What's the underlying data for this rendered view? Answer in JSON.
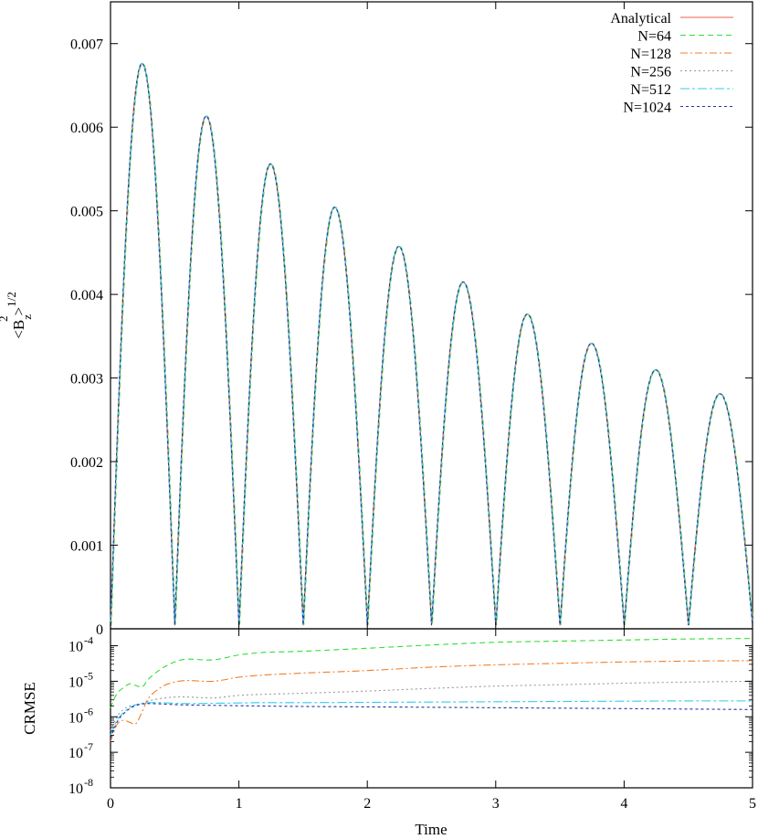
{
  "chart_data": [
    {
      "type": "line",
      "title": "",
      "ylabel_base": "<B",
      "ylabel_sub": "z",
      "ylabel_sup": "2",
      "ylabel_close": ">",
      "ylabel_power": "1/2",
      "xlim": [
        0,
        5
      ],
      "ylim": [
        0,
        0.0075
      ],
      "yticks": [
        {
          "value": 0,
          "label": "0"
        },
        {
          "value": 0.001,
          "label": "0.001"
        },
        {
          "value": 0.002,
          "label": "0.002"
        },
        {
          "value": 0.003,
          "label": "0.003"
        },
        {
          "value": 0.004,
          "label": "0.004"
        },
        {
          "value": 0.005,
          "label": "0.005"
        },
        {
          "value": 0.006,
          "label": "0.006"
        },
        {
          "value": 0.007,
          "label": "0.007"
        }
      ],
      "grid": false,
      "legend_position": "top-right",
      "oscillation": {
        "period": 1.0,
        "peaks": [
          {
            "x": 0.25,
            "y": 0.00672
          },
          {
            "x": 0.75,
            "y": 0.00609
          },
          {
            "x": 1.25,
            "y": 0.00552
          },
          {
            "x": 1.75,
            "y": 0.005
          },
          {
            "x": 2.25,
            "y": 0.00453
          },
          {
            "x": 2.75,
            "y": 0.0041
          },
          {
            "x": 3.25,
            "y": 0.00372
          },
          {
            "x": 3.75,
            "y": 0.00337
          },
          {
            "x": 4.25,
            "y": 0.00306
          },
          {
            "x": 4.75,
            "y": 0.00277
          }
        ],
        "zeros": [
          0.5,
          1.0,
          1.5,
          2.0,
          2.5,
          3.0,
          3.5,
          4.0,
          4.5,
          5.0
        ]
      },
      "series": [
        {
          "name": "Analytical",
          "color": "#e8634a",
          "dash": "none"
        },
        {
          "name": "N=64",
          "color": "#33dd33",
          "dash": "6,4"
        },
        {
          "name": "N=128",
          "color": "#ee8030",
          "dash": "8,3,2,3"
        },
        {
          "name": "N=256",
          "color": "#999999",
          "dash": "2,3"
        },
        {
          "name": "N=512",
          "color": "#33ccee",
          "dash": "10,3,3,3"
        },
        {
          "name": "N=1024",
          "color": "#2233aa",
          "dash": "3,3"
        }
      ]
    },
    {
      "type": "line",
      "title": "",
      "xlabel": "Time",
      "ylabel": "CRMSE",
      "yscale": "log",
      "xlim": [
        0,
        5
      ],
      "ylim": [
        1e-08,
        0.0003
      ],
      "xticks": [
        {
          "value": 0,
          "label": "0"
        },
        {
          "value": 1,
          "label": "1"
        },
        {
          "value": 2,
          "label": "2"
        },
        {
          "value": 3,
          "label": "3"
        },
        {
          "value": 4,
          "label": "4"
        },
        {
          "value": 5,
          "label": "5"
        }
      ],
      "yticks": [
        {
          "value": 1e-08,
          "base": "10",
          "exp": "-8"
        },
        {
          "value": 1e-07,
          "base": "10",
          "exp": "-7"
        },
        {
          "value": 1e-06,
          "base": "10",
          "exp": "-6"
        },
        {
          "value": 1e-05,
          "base": "10",
          "exp": "-5"
        },
        {
          "value": 0.0001,
          "base": "10",
          "exp": "-4"
        }
      ],
      "grid": false,
      "series": [
        {
          "name": "N=64",
          "color": "#33dd33",
          "dash": "6,4",
          "x": [
            0.0,
            0.05,
            0.1,
            0.15,
            0.2,
            0.25,
            0.3,
            0.4,
            0.5,
            0.6,
            0.8,
            1.0,
            1.2,
            1.5,
            2.0,
            2.5,
            3.0,
            3.5,
            4.0,
            4.5,
            5.0
          ],
          "y": [
            1.8e-06,
            4.5e-06,
            6.5e-06,
            8.5e-06,
            7.5e-06,
            7e-06,
            1.2e-05,
            2.3e-05,
            3.5e-05,
            4.2e-05,
            4e-05,
            5.5e-05,
            6.5e-05,
            7e-05,
            8.5e-05,
            0.000105,
            0.000125,
            0.000135,
            0.000145,
            0.000155,
            0.00016
          ]
        },
        {
          "name": "N=128",
          "color": "#ee8030",
          "dash": "8,3,2,3",
          "x": [
            0.0,
            0.05,
            0.1,
            0.15,
            0.2,
            0.25,
            0.3,
            0.4,
            0.5,
            0.6,
            0.8,
            1.0,
            1.2,
            1.5,
            2.0,
            2.5,
            3.0,
            3.5,
            4.0,
            4.5,
            5.0
          ],
          "y": [
            2e-07,
            6e-07,
            8e-07,
            7e-07,
            6.5e-07,
            1.5e-06,
            3.5e-06,
            7e-06,
            9.5e-06,
            1.05e-05,
            1e-05,
            1.3e-05,
            1.5e-05,
            1.7e-05,
            2e-05,
            2.5e-05,
            2.9e-05,
            3.2e-05,
            3.5e-05,
            3.7e-05,
            3.8e-05
          ]
        },
        {
          "name": "N=256",
          "color": "#999999",
          "dash": "2,3",
          "x": [
            0.0,
            0.05,
            0.1,
            0.15,
            0.2,
            0.25,
            0.3,
            0.4,
            0.5,
            0.6,
            0.8,
            1.0,
            1.2,
            1.5,
            2.0,
            2.5,
            3.0,
            3.5,
            4.0,
            4.5,
            5.0
          ],
          "y": [
            4e-07,
            1e-06,
            1.6e-06,
            2e-06,
            2.2e-06,
            2.3e-06,
            2.8e-06,
            3.3e-06,
            3.6e-06,
            3.6e-06,
            3.4e-06,
            4e-06,
            4.3e-06,
            4.6e-06,
            5.3e-06,
            6.3e-06,
            7.3e-06,
            8e-06,
            8.8e-06,
            9.5e-06,
            1e-05
          ]
        },
        {
          "name": "N=512",
          "color": "#33ccee",
          "dash": "10,3,3,3",
          "x": [
            0.0,
            0.05,
            0.1,
            0.15,
            0.2,
            0.25,
            0.3,
            0.4,
            0.5,
            0.6,
            0.8,
            1.0,
            1.2,
            1.5,
            2.0,
            2.5,
            3.0,
            3.5,
            4.0,
            4.5,
            5.0
          ],
          "y": [
            3e-07,
            8e-07,
            1.3e-06,
            1.8e-06,
            2.2e-06,
            2.4e-06,
            2.5e-06,
            2.5e-06,
            2.4e-06,
            2.35e-06,
            2.4e-06,
            2.45e-06,
            2.5e-06,
            2.5e-06,
            2.55e-06,
            2.6e-06,
            2.65e-06,
            2.7e-06,
            2.75e-06,
            2.8e-06,
            2.8e-06
          ]
        },
        {
          "name": "N=1024",
          "color": "#2233aa",
          "dash": "3,3",
          "x": [
            0.0,
            0.05,
            0.1,
            0.15,
            0.2,
            0.25,
            0.3,
            0.4,
            0.5,
            0.6,
            0.8,
            1.0,
            1.2,
            1.5,
            2.0,
            2.5,
            3.0,
            3.5,
            4.0,
            4.5,
            5.0
          ],
          "y": [
            2.5e-07,
            7e-07,
            1.2e-06,
            1.7e-06,
            2.1e-06,
            2.3e-06,
            2.35e-06,
            2.3e-06,
            2.2e-06,
            2.15e-06,
            2.1e-06,
            2.05e-06,
            2e-06,
            1.95e-06,
            1.9e-06,
            1.85e-06,
            1.8e-06,
            1.75e-06,
            1.7e-06,
            1.65e-06,
            1.6e-06
          ]
        }
      ]
    }
  ]
}
